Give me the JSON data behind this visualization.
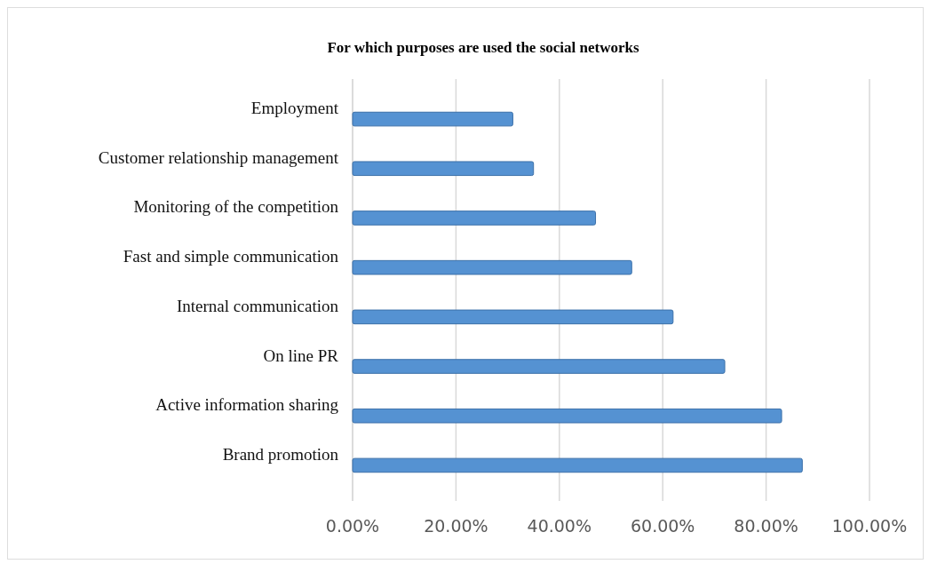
{
  "chart_data": {
    "type": "bar",
    "orientation": "horizontal",
    "title": "For which purposes are used the social networks",
    "categories": [
      "Employment",
      "Customer relationship management",
      "Monitoring of the competition",
      "Fast and simple communication",
      "Internal communication",
      "On line PR",
      "Active information sharing",
      "Brand promotion"
    ],
    "values": [
      31,
      35,
      47,
      54,
      62,
      72,
      83,
      87
    ],
    "color": "#5592d2",
    "xlim": [
      0,
      100
    ],
    "xticks": [
      {
        "value": 0,
        "label": "0.00%"
      },
      {
        "value": 20,
        "label": "20.00%"
      },
      {
        "value": 40,
        "label": "40.00%"
      },
      {
        "value": 60,
        "label": "60.00%"
      },
      {
        "value": 80,
        "label": "80.00%"
      },
      {
        "value": 100,
        "label": "100.00%"
      }
    ],
    "grid": "x"
  }
}
